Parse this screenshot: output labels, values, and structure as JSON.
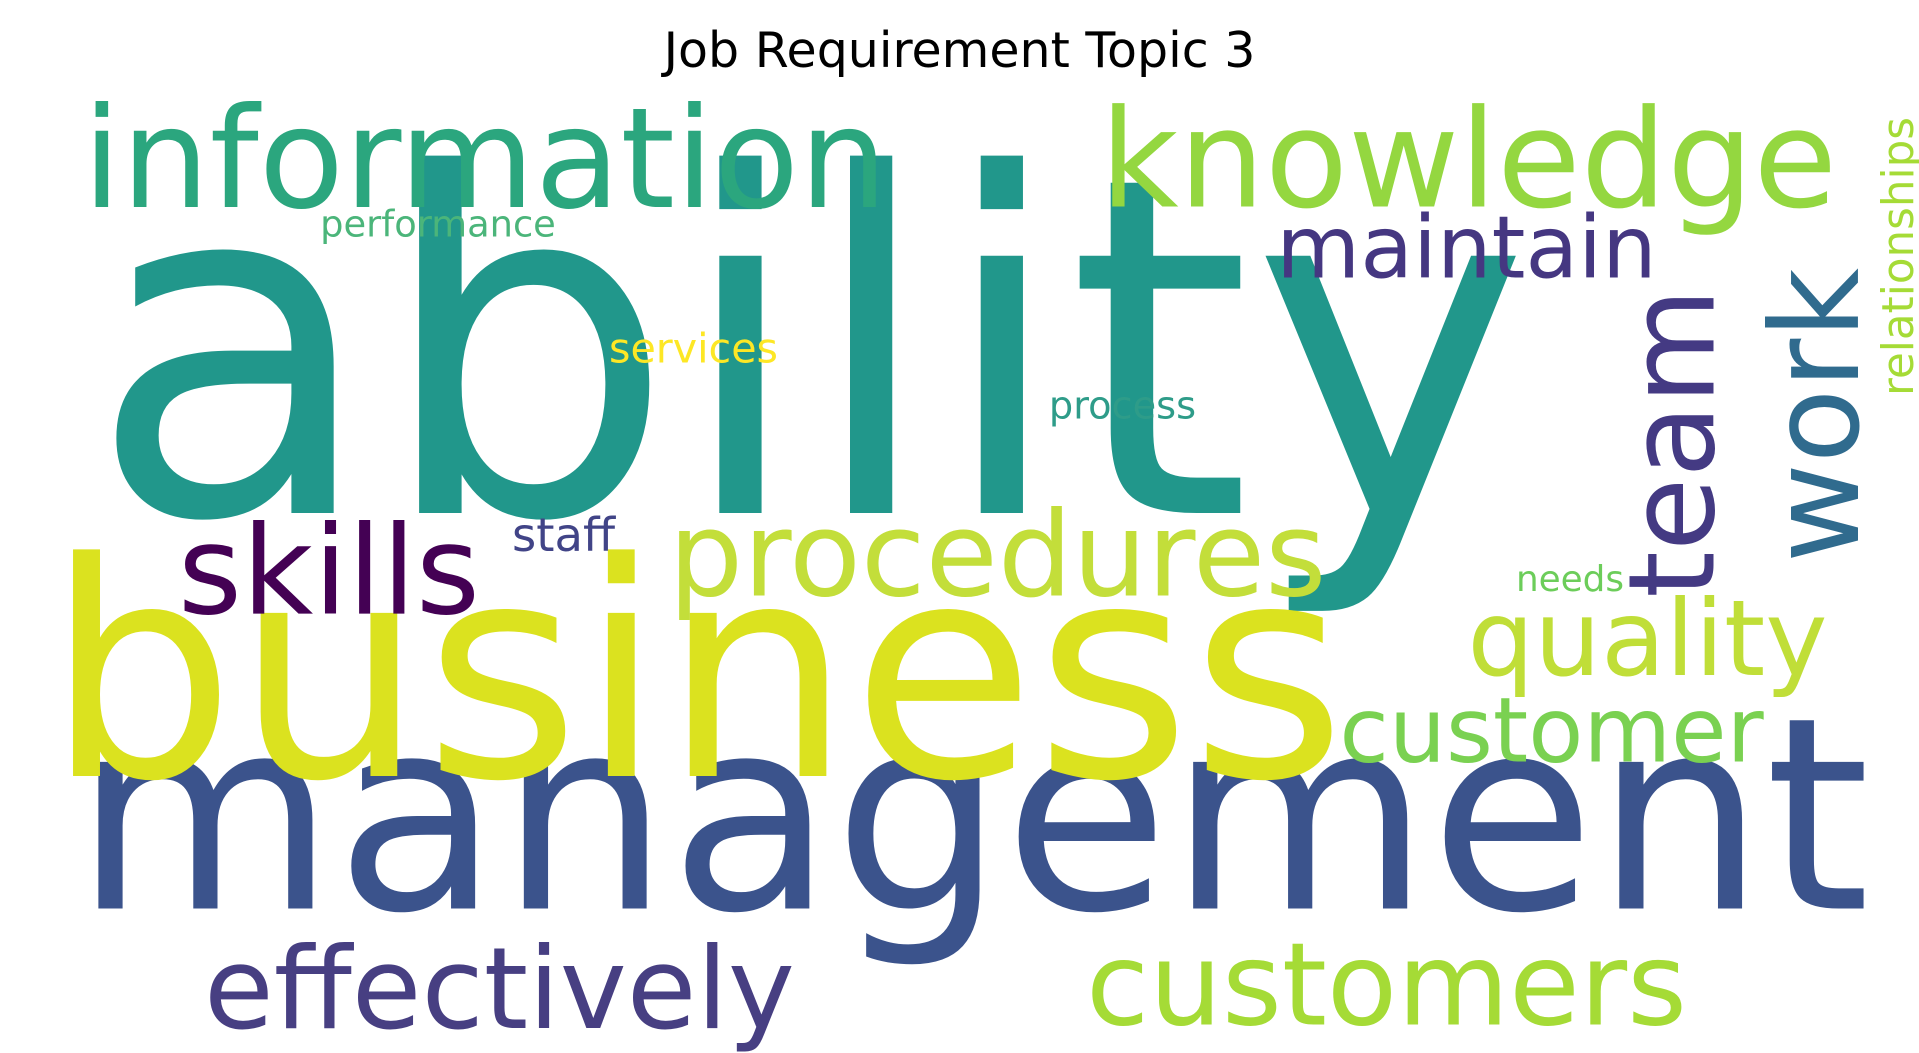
{
  "title": "Job Requirement Topic 3",
  "words": [
    {
      "text": "ability",
      "color": "#21978b"
    },
    {
      "text": "management",
      "color": "#3b538c"
    },
    {
      "text": "business",
      "color": "#dbe21f"
    },
    {
      "text": "information",
      "color": "#2ba67e"
    },
    {
      "text": "knowledge",
      "color": "#94d740"
    },
    {
      "text": "procedures",
      "color": "#c3de3a"
    },
    {
      "text": "customers",
      "color": "#a5db36"
    },
    {
      "text": "effectively",
      "color": "#473f82"
    },
    {
      "text": "maintain",
      "color": "#453781"
    },
    {
      "text": "team",
      "color": "#443a83"
    },
    {
      "text": "work",
      "color": "#306b8e"
    },
    {
      "text": "skills",
      "color": "#440154"
    },
    {
      "text": "quality",
      "color": "#c0de38"
    },
    {
      "text": "customer",
      "color": "#7ad151"
    },
    {
      "text": "relationships",
      "color": "#a5db36"
    },
    {
      "text": "performance",
      "color": "#4bb57a"
    },
    {
      "text": "services",
      "color": "#fde725"
    },
    {
      "text": "process",
      "color": "#2e9c89"
    },
    {
      "text": "staff",
      "color": "#414487"
    },
    {
      "text": "needs",
      "color": "#6ccd5a"
    }
  ]
}
